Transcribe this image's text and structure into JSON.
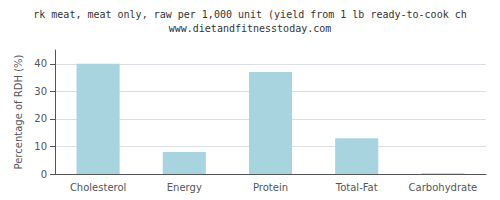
{
  "chart_data": {
    "type": "bar",
    "title": "rk meat, meat only, raw per 1,000 unit (yield from 1 lb ready-to-cook ch",
    "subtitle": "www.dietandfitnesstoday.com",
    "categories": [
      "Cholesterol",
      "Energy",
      "Protein",
      "Total-Fat",
      "Carbohydrate"
    ],
    "values": [
      40,
      8,
      37,
      13,
      0.3
    ],
    "color": "#a8d4e0",
    "ylabel": "Percentage of RDH (%)",
    "ylim": [
      0,
      45
    ],
    "yticks": [
      0,
      10,
      20,
      30,
      40
    ],
    "grid": true
  }
}
